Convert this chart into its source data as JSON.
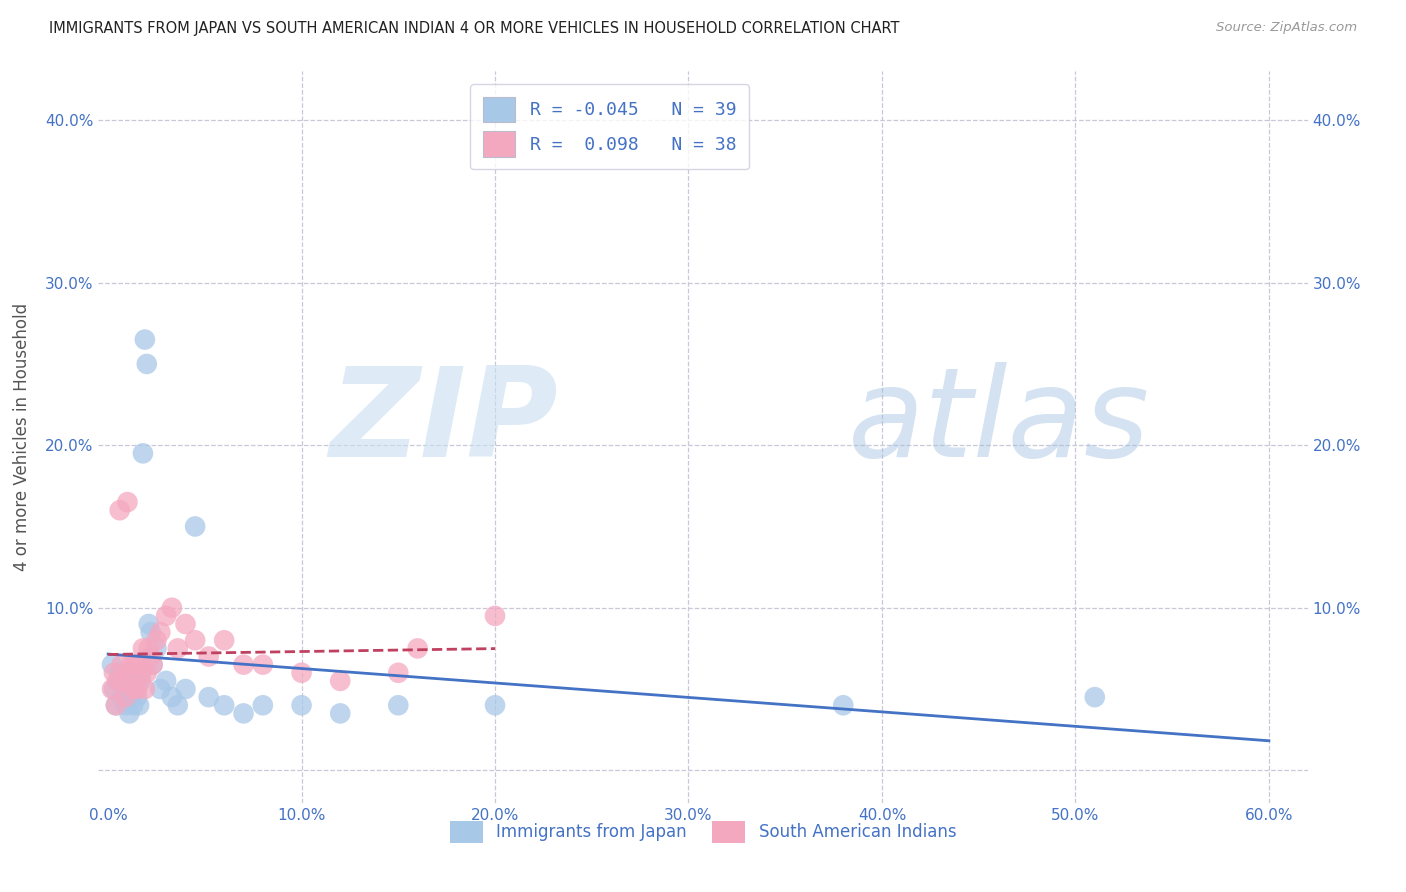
{
  "title": "IMMIGRANTS FROM JAPAN VS SOUTH AMERICAN INDIAN 4 OR MORE VEHICLES IN HOUSEHOLD CORRELATION CHART",
  "source": "Source: ZipAtlas.com",
  "ylabel": "4 or more Vehicles in Household",
  "xlim": [
    -0.005,
    0.62
  ],
  "ylim": [
    -0.02,
    0.43
  ],
  "xticks": [
    0.0,
    0.1,
    0.2,
    0.3,
    0.4,
    0.5,
    0.6
  ],
  "yticks": [
    0.0,
    0.1,
    0.2,
    0.3,
    0.4
  ],
  "xtick_labels": [
    "0.0%",
    "10.0%",
    "20.0%",
    "30.0%",
    "40.0%",
    "50.0%",
    "60.0%"
  ],
  "ytick_labels_left": [
    "",
    "10.0%",
    "20.0%",
    "30.0%",
    "40.0%"
  ],
  "ytick_labels_right": [
    "",
    "10.0%",
    "20.0%",
    "30.0%",
    "40.0%"
  ],
  "japan_R": -0.045,
  "japan_N": 39,
  "sai_R": 0.098,
  "sai_N": 38,
  "japan_color": "#a8c8e8",
  "sai_color": "#f4a8c0",
  "japan_line_color": "#4472c4",
  "sai_line_color": "#c04060",
  "text_color": "#4472c4",
  "bg_color": "#ffffff",
  "grid_color": "#c8c8d8",
  "legend_label_japan": "Immigrants from Japan",
  "legend_label_sai": "South American Indians",
  "japan_x": [
    0.002,
    0.003,
    0.004,
    0.005,
    0.006,
    0.007,
    0.008,
    0.009,
    0.01,
    0.011,
    0.012,
    0.013,
    0.014,
    0.015,
    0.016,
    0.017,
    0.018,
    0.019,
    0.02,
    0.021,
    0.022,
    0.023,
    0.025,
    0.027,
    0.03,
    0.033,
    0.036,
    0.04,
    0.045,
    0.052,
    0.06,
    0.07,
    0.08,
    0.1,
    0.12,
    0.15,
    0.2,
    0.38,
    0.51
  ],
  "japan_y": [
    0.065,
    0.05,
    0.04,
    0.055,
    0.06,
    0.045,
    0.05,
    0.04,
    0.045,
    0.035,
    0.05,
    0.04,
    0.06,
    0.045,
    0.04,
    0.055,
    0.195,
    0.265,
    0.25,
    0.09,
    0.085,
    0.065,
    0.075,
    0.05,
    0.055,
    0.045,
    0.04,
    0.05,
    0.15,
    0.045,
    0.04,
    0.035,
    0.04,
    0.04,
    0.035,
    0.04,
    0.04,
    0.04,
    0.045
  ],
  "sai_x": [
    0.002,
    0.003,
    0.004,
    0.005,
    0.006,
    0.007,
    0.008,
    0.009,
    0.01,
    0.011,
    0.012,
    0.013,
    0.014,
    0.015,
    0.016,
    0.017,
    0.018,
    0.019,
    0.02,
    0.021,
    0.022,
    0.023,
    0.025,
    0.027,
    0.03,
    0.033,
    0.036,
    0.04,
    0.045,
    0.052,
    0.06,
    0.07,
    0.08,
    0.1,
    0.12,
    0.15,
    0.16,
    0.2
  ],
  "sai_y": [
    0.05,
    0.06,
    0.04,
    0.055,
    0.16,
    0.065,
    0.055,
    0.045,
    0.165,
    0.06,
    0.065,
    0.05,
    0.065,
    0.05,
    0.065,
    0.06,
    0.075,
    0.05,
    0.06,
    0.075,
    0.07,
    0.065,
    0.08,
    0.085,
    0.095,
    0.1,
    0.075,
    0.09,
    0.08,
    0.07,
    0.08,
    0.065,
    0.065,
    0.06,
    0.055,
    0.06,
    0.075,
    0.095
  ]
}
